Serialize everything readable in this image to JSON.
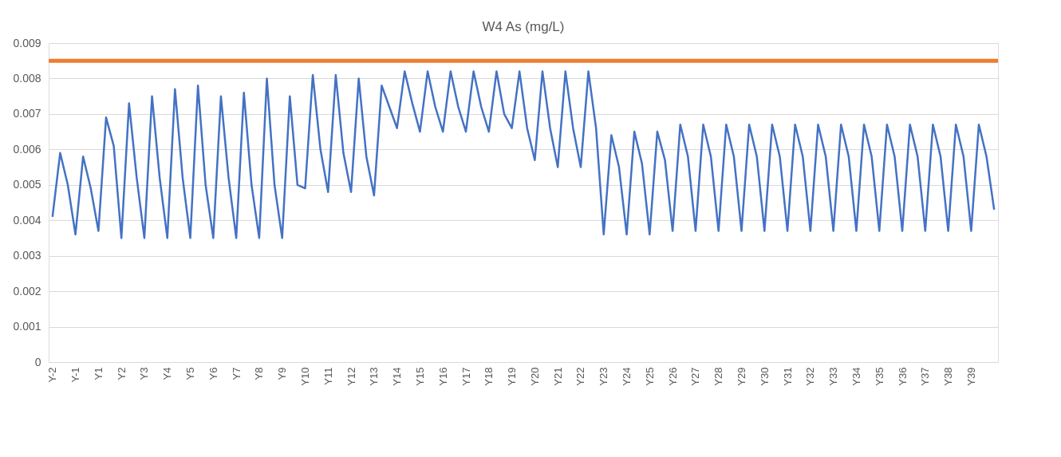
{
  "chart_data": {
    "type": "line",
    "title": "W4  As (mg/L)",
    "categories": [
      "Y-2",
      null,
      null,
      "Y-1",
      null,
      null,
      "Y1",
      null,
      null,
      "Y2",
      null,
      null,
      "Y3",
      null,
      null,
      "Y4",
      null,
      null,
      "Y5",
      null,
      null,
      "Y6",
      null,
      null,
      "Y7",
      null,
      null,
      "Y8",
      null,
      null,
      "Y9",
      null,
      null,
      "Y10",
      null,
      null,
      "Y11",
      null,
      null,
      "Y12",
      null,
      null,
      "Y13",
      null,
      null,
      "Y14",
      null,
      null,
      "Y15",
      null,
      null,
      "Y16",
      null,
      null,
      "Y17",
      null,
      null,
      "Y18",
      null,
      null,
      "Y19",
      null,
      null,
      "Y20",
      null,
      null,
      "Y21",
      null,
      null,
      "Y22",
      null,
      null,
      "Y23",
      null,
      null,
      "Y24",
      null,
      null,
      "Y25",
      null,
      null,
      "Y26",
      null,
      null,
      "Y27",
      null,
      null,
      "Y28",
      null,
      null,
      "Y29",
      null,
      null,
      "Y30",
      null,
      null,
      "Y31",
      null,
      null,
      "Y32",
      null,
      null,
      "Y33",
      null,
      null,
      "Y34",
      null,
      null,
      "Y35",
      null,
      null,
      "Y36",
      null,
      null,
      "Y37",
      null,
      null,
      "Y38",
      null,
      null,
      "Y39",
      null,
      null,
      null
    ],
    "series": [
      {
        "color": "#4472c4",
        "values": [
          0.0041,
          0.0059,
          0.005,
          0.0036,
          0.0058,
          0.0049,
          0.0037,
          0.0069,
          0.0061,
          0.0035,
          0.0073,
          0.0052,
          0.0035,
          0.0075,
          0.0052,
          0.0035,
          0.0077,
          0.0052,
          0.0035,
          0.0078,
          0.005,
          0.0035,
          0.0075,
          0.0052,
          0.0035,
          0.0076,
          0.005,
          0.0035,
          0.008,
          0.005,
          0.0035,
          0.0075,
          0.005,
          0.0049,
          0.0081,
          0.006,
          0.0048,
          0.0081,
          0.0059,
          0.0048,
          0.008,
          0.0058,
          0.0047,
          0.0078,
          0.0072,
          0.0066,
          0.0082,
          0.0073,
          0.0065,
          0.0082,
          0.0072,
          0.0065,
          0.0082,
          0.0072,
          0.0065,
          0.0082,
          0.0072,
          0.0065,
          0.0082,
          0.007,
          0.0066,
          0.0082,
          0.0066,
          0.0057,
          0.0082,
          0.0066,
          0.0055,
          0.0082,
          0.0066,
          0.0055,
          0.0082,
          0.0066,
          0.0036,
          0.0064,
          0.0055,
          0.0036,
          0.0065,
          0.0056,
          0.0036,
          0.0065,
          0.0057,
          0.0037,
          0.0067,
          0.0058,
          0.0037,
          0.0067,
          0.0058,
          0.0037,
          0.0067,
          0.0058,
          0.0037,
          0.0067,
          0.0058,
          0.0037,
          0.0067,
          0.0058,
          0.0037,
          0.0067,
          0.0058,
          0.0037,
          0.0067,
          0.0058,
          0.0037,
          0.0067,
          0.0058,
          0.0037,
          0.0067,
          0.0058,
          0.0037,
          0.0067,
          0.0058,
          0.0037,
          0.0067,
          0.0058,
          0.0037,
          0.0067,
          0.0058,
          0.0037,
          0.0067,
          0.0058,
          0.0037,
          0.0067,
          0.0058,
          0.0043
        ]
      }
    ],
    "ylim": [
      0,
      0.009
    ],
    "yticks": [
      0,
      0.001,
      0.002,
      0.003,
      0.004,
      0.005,
      0.006,
      0.007,
      0.008,
      0.009
    ],
    "ref_lines": [
      {
        "axis": "y",
        "value": 0.0085,
        "color": "#ed7d31"
      }
    ],
    "grid": "y"
  }
}
